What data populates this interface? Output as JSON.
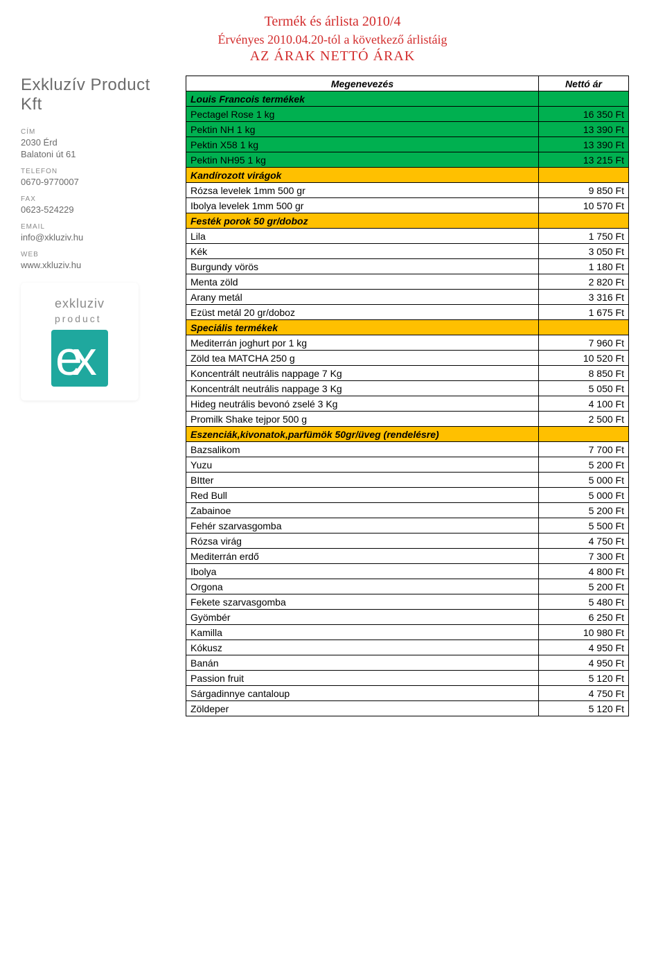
{
  "header": {
    "line1": "Termék és árlista 2010/4",
    "line2": "Érvényes 2010.04.20-tól a következő árlistáig",
    "line3": "AZ ÁRAK NETTÓ ÁRAK"
  },
  "sidebar": {
    "company": "Exkluzív Product Kft",
    "labels": {
      "address": "CÍM",
      "phone": "TELEFON",
      "fax": "FAX",
      "email": "EMAIL",
      "web": "WEB"
    },
    "address1": "2030 Érd",
    "address2": "Balatoni út 61",
    "phone": "0670-9770007",
    "fax": "0623-524229",
    "email": "info@xkluziv.hu",
    "web": "www.xkluziv.hu",
    "logo_top": "exkluziv",
    "logo_bottom": "product"
  },
  "table": {
    "col_name": "Megenevezés",
    "col_price": "Nettó ár",
    "rows": [
      {
        "type": "section-green",
        "name": "Louis Francois termékek",
        "price": ""
      },
      {
        "type": "row-green",
        "name": "Pectagel Rose 1 kg",
        "price": "16 350 Ft"
      },
      {
        "type": "row-green",
        "name": "Pektin NH 1 kg",
        "price": "13 390 Ft"
      },
      {
        "type": "row-green",
        "name": "Pektin X58 1 kg",
        "price": "13 390 Ft"
      },
      {
        "type": "row-green",
        "name": "Pektin NH95 1 kg",
        "price": "13 215 Ft"
      },
      {
        "type": "section-orange",
        "name": "Kandírozott virágok",
        "price": ""
      },
      {
        "type": "row",
        "name": "Rózsa levelek 1mm 500 gr",
        "price": "9 850 Ft"
      },
      {
        "type": "row",
        "name": "Ibolya levelek 1mm 500 gr",
        "price": "10 570 Ft"
      },
      {
        "type": "section-orange",
        "name": "Festék porok 50 gr/doboz",
        "price": ""
      },
      {
        "type": "row",
        "name": "Lila",
        "price": "1 750 Ft"
      },
      {
        "type": "row",
        "name": "Kék",
        "price": "3 050 Ft"
      },
      {
        "type": "row",
        "name": "Burgundy vörös",
        "price": "1 180 Ft"
      },
      {
        "type": "row",
        "name": "Menta zöld",
        "price": "2 820 Ft"
      },
      {
        "type": "row",
        "name": "Arany metál",
        "price": "3 316 Ft"
      },
      {
        "type": "row",
        "name": "Ezüst metál 20 gr/doboz",
        "price": "1 675 Ft"
      },
      {
        "type": "section-orange",
        "name": "Speciális termékek",
        "price": ""
      },
      {
        "type": "row",
        "name": "Mediterrán joghurt por 1 kg",
        "price": "7 960 Ft"
      },
      {
        "type": "row",
        "name": "Zöld tea MATCHA 250 g",
        "price": "10 520 Ft"
      },
      {
        "type": "row",
        "name": "Koncentrált neutrális nappage 7 Kg",
        "price": "8 850 Ft"
      },
      {
        "type": "row",
        "name": "Koncentrált neutrális nappage 3 Kg",
        "price": "5 050 Ft"
      },
      {
        "type": "row",
        "name": "Hideg neutrális bevonó zselé 3 Kg",
        "price": "4 100 Ft"
      },
      {
        "type": "row",
        "name": "Promilk Shake tejpor 500 g",
        "price": "2 500 Ft"
      },
      {
        "type": "section-orange",
        "name": "Eszenciák,kivonatok,parfümök 50gr/üveg (rendelésre)",
        "price": ""
      },
      {
        "type": "row",
        "name": "Bazsalikom",
        "price": "7 700 Ft"
      },
      {
        "type": "row",
        "name": "Yuzu",
        "price": "5 200 Ft"
      },
      {
        "type": "row",
        "name": "BItter",
        "price": "5 000 Ft"
      },
      {
        "type": "row",
        "name": "Red Bull",
        "price": "5 000 Ft"
      },
      {
        "type": "row",
        "name": "Zabainoe",
        "price": "5 200 Ft"
      },
      {
        "type": "row",
        "name": "Fehér szarvasgomba",
        "price": "5 500 Ft"
      },
      {
        "type": "row",
        "name": "Rózsa virág",
        "price": "4 750 Ft"
      },
      {
        "type": "row",
        "name": "Mediterrán erdő",
        "price": "7 300 Ft"
      },
      {
        "type": "row",
        "name": "Ibolya",
        "price": "4 800 Ft"
      },
      {
        "type": "row",
        "name": "Orgona",
        "price": "5 200 Ft"
      },
      {
        "type": "row",
        "name": "Fekete szarvasgomba",
        "price": "5 480 Ft"
      },
      {
        "type": "row",
        "name": "Gyömbér",
        "price": "6 250 Ft"
      },
      {
        "type": "row",
        "name": "Kamilla",
        "price": "10 980 Ft"
      },
      {
        "type": "row",
        "name": "Kókusz",
        "price": "4 950 Ft"
      },
      {
        "type": "row",
        "name": "Banán",
        "price": "4 950 Ft"
      },
      {
        "type": "row",
        "name": "Passion fruit",
        "price": "5 120 Ft"
      },
      {
        "type": "row",
        "name": "Sárgadinnye cantaloup",
        "price": "4 750 Ft"
      },
      {
        "type": "row",
        "name": "Zöldeper",
        "price": "5 120 Ft"
      }
    ]
  }
}
